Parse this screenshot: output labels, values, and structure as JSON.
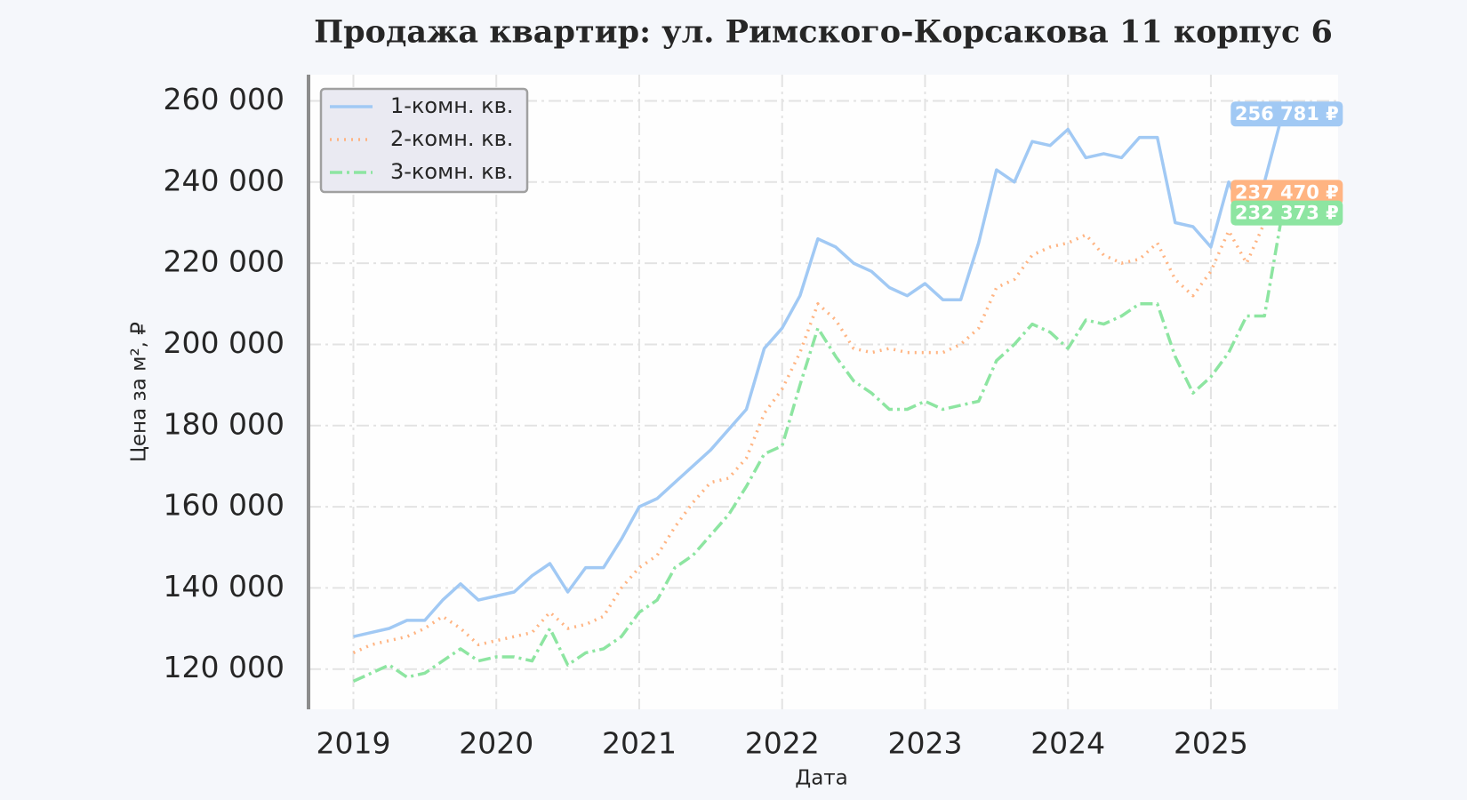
{
  "chart_data": {
    "type": "line",
    "title": "Продажа квартир: ул. Римского-Корсакова 11 корпус 6",
    "x_label": "Дата",
    "y_label": "Цена за м², ₽",
    "x": [
      2019.0,
      2019.125,
      2019.25,
      2019.375,
      2019.5,
      2019.625,
      2019.75,
      2019.875,
      2020.0,
      2020.125,
      2020.25,
      2020.375,
      2020.5,
      2020.625,
      2020.75,
      2020.875,
      2021.0,
      2021.125,
      2021.25,
      2021.375,
      2021.5,
      2021.625,
      2021.75,
      2021.875,
      2022.0,
      2022.125,
      2022.25,
      2022.375,
      2022.5,
      2022.625,
      2022.75,
      2022.875,
      2023.0,
      2023.125,
      2023.25,
      2023.375,
      2023.5,
      2023.625,
      2023.75,
      2023.875,
      2024.0,
      2024.125,
      2024.25,
      2024.375,
      2024.5,
      2024.625,
      2024.75,
      2024.875,
      2025.0,
      2025.125,
      2025.25,
      2025.375,
      2025.5
    ],
    "series": [
      {
        "name": "1-комн. кв.",
        "color": "#a1c9f4",
        "dash": "solid",
        "values": [
          128000,
          129000,
          130000,
          132000,
          132000,
          137000,
          141000,
          137000,
          138000,
          139000,
          143000,
          146000,
          139000,
          145000,
          145000,
          152000,
          160000,
          162000,
          166000,
          170000,
          174000,
          179000,
          184000,
          199000,
          204000,
          212000,
          226000,
          224000,
          220000,
          218000,
          214000,
          212000,
          215000,
          211000,
          211000,
          225000,
          243000,
          240000,
          250000,
          249000,
          253000,
          246000,
          247000,
          246000,
          251000,
          251000,
          230000,
          229000,
          224000,
          240000,
          230000,
          240000,
          256781
        ],
        "value_labels": [
          null,
          null,
          null,
          null,
          null,
          null,
          null,
          null,
          null,
          null,
          null,
          null,
          null,
          null,
          null,
          null,
          null,
          null,
          null,
          null,
          null,
          null,
          null,
          null,
          null,
          null,
          null,
          null,
          null,
          null,
          null,
          null,
          null,
          null,
          null,
          null,
          null,
          null,
          null,
          null,
          null,
          null,
          null,
          null,
          null,
          null,
          null,
          null,
          null,
          null,
          null,
          null,
          "256 781 ₽"
        ]
      },
      {
        "name": "2-комн. кв.",
        "color": "#ffb482",
        "dash": "dotted",
        "values": [
          124000,
          126000,
          127000,
          128000,
          130000,
          133000,
          130000,
          126000,
          127000,
          128000,
          129000,
          134000,
          130000,
          131000,
          133000,
          140000,
          145000,
          148000,
          155000,
          161000,
          166000,
          167000,
          172000,
          183000,
          189000,
          198000,
          210000,
          206000,
          199000,
          198000,
          199000,
          198000,
          198000,
          198000,
          200000,
          204000,
          214000,
          216000,
          222000,
          224000,
          225000,
          227000,
          222000,
          220000,
          221000,
          225000,
          216000,
          212000,
          218000,
          228000,
          220000,
          230000,
          237470
        ],
        "value_labels": [
          null,
          null,
          null,
          null,
          null,
          null,
          null,
          null,
          null,
          null,
          null,
          null,
          null,
          null,
          null,
          null,
          null,
          null,
          null,
          null,
          null,
          null,
          null,
          null,
          null,
          null,
          null,
          null,
          null,
          null,
          null,
          null,
          null,
          null,
          null,
          null,
          null,
          null,
          null,
          null,
          null,
          null,
          null,
          null,
          null,
          null,
          null,
          null,
          null,
          null,
          null,
          null,
          "237 470 ₽"
        ]
      },
      {
        "name": "3-комн. кв.",
        "color": "#8de5a1",
        "dash": "dashdot",
        "values": [
          117000,
          119000,
          121000,
          118000,
          119000,
          122000,
          125000,
          122000,
          123000,
          123000,
          122000,
          130000,
          121000,
          124000,
          125000,
          128000,
          134000,
          137000,
          145000,
          148000,
          153000,
          158000,
          165000,
          173000,
          175000,
          190000,
          204000,
          197000,
          191000,
          188000,
          184000,
          184000,
          186000,
          184000,
          185000,
          186000,
          196000,
          200000,
          205000,
          203000,
          199000,
          206000,
          205000,
          207000,
          210000,
          210000,
          197000,
          188000,
          192000,
          198000,
          207000,
          207000,
          232373
        ],
        "value_labels": [
          null,
          null,
          null,
          null,
          null,
          null,
          null,
          null,
          null,
          null,
          null,
          null,
          null,
          null,
          null,
          null,
          null,
          null,
          null,
          null,
          null,
          null,
          null,
          null,
          null,
          null,
          null,
          null,
          null,
          null,
          null,
          null,
          null,
          null,
          null,
          null,
          null,
          null,
          null,
          null,
          null,
          null,
          null,
          null,
          null,
          null,
          null,
          null,
          null,
          null,
          null,
          null,
          "232 373 ₽"
        ]
      }
    ],
    "xlim": [
      2018.686,
      2025.89
    ],
    "xticks": [
      2019,
      2020,
      2021,
      2022,
      2023,
      2024,
      2025
    ],
    "ylim": [
      110080,
      266460
    ],
    "yticks": [
      {
        "value": 120000,
        "label": "120 000"
      },
      {
        "value": 140000,
        "label": "140 000"
      },
      {
        "value": 160000,
        "label": "160 000"
      },
      {
        "value": 180000,
        "label": "180 000"
      },
      {
        "value": 200000,
        "label": "200 000"
      },
      {
        "value": 220000,
        "label": "220 000"
      },
      {
        "value": 240000,
        "label": "240 000"
      },
      {
        "value": 260000,
        "label": "260 000"
      }
    ],
    "grid": true,
    "legend": "upper-left"
  }
}
